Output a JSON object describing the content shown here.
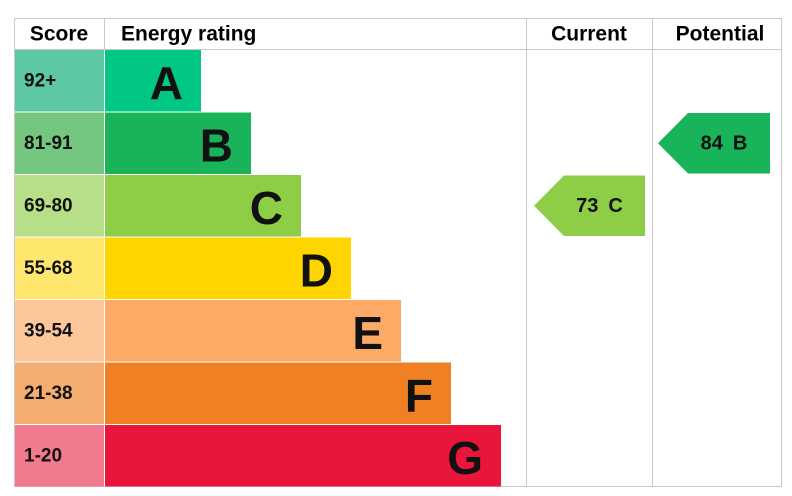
{
  "header": {
    "score": "Score",
    "rating": "Energy rating",
    "current": "Current",
    "potential": "Potential"
  },
  "rows": [
    {
      "score": "92+",
      "letter": "A",
      "color": "#00c781",
      "score_color": "#5ec8a2"
    },
    {
      "score": "81-91",
      "letter": "B",
      "color": "#19b459",
      "score_color": "#74c77f"
    },
    {
      "score": "69-80",
      "letter": "C",
      "color": "#8dce46",
      "score_color": "#b7df88"
    },
    {
      "score": "55-68",
      "letter": "D",
      "color": "#ffd500",
      "score_color": "#ffe66c"
    },
    {
      "score": "39-54",
      "letter": "E",
      "color": "#fcaa65",
      "score_color": "#fdc79c"
    },
    {
      "score": "21-38",
      "letter": "F",
      "color": "#ef8023",
      "score_color": "#f4ac70"
    },
    {
      "score": "1-20",
      "letter": "G",
      "color": "#e9153b",
      "score_color": "#f27a8e"
    }
  ],
  "current": {
    "value": 73,
    "letter": "C"
  },
  "potential": {
    "value": 84,
    "letter": "B"
  }
}
